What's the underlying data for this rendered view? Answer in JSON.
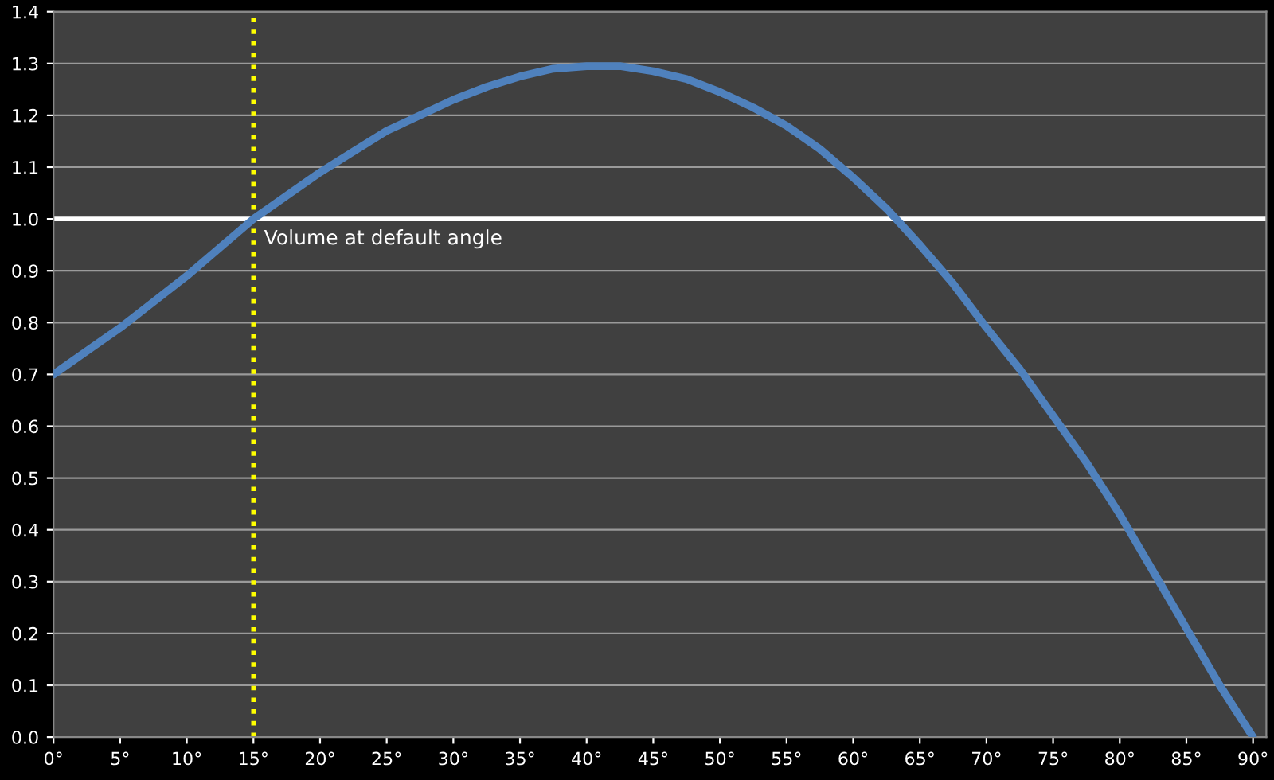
{
  "chart_data": {
    "type": "line",
    "x": [
      0,
      2.5,
      5,
      7.5,
      10,
      12.5,
      15,
      17.5,
      20,
      22.5,
      25,
      27.5,
      30,
      32.5,
      35,
      37.5,
      40,
      42.5,
      45,
      47.5,
      50,
      52.5,
      55,
      57.5,
      60,
      62.5,
      65,
      67.5,
      70,
      72.5,
      75,
      77.5,
      80,
      82.5,
      85,
      87.5,
      90
    ],
    "series": [
      {
        "color": "#4f81bd",
        "values": [
          0.7,
          0.745,
          0.79,
          0.84,
          0.89,
          0.945,
          1.0,
          1.045,
          1.09,
          1.13,
          1.17,
          1.2,
          1.23,
          1.255,
          1.275,
          1.29,
          1.295,
          1.295,
          1.285,
          1.27,
          1.245,
          1.215,
          1.18,
          1.135,
          1.08,
          1.02,
          0.95,
          0.875,
          0.79,
          0.71,
          0.62,
          0.53,
          0.43,
          0.32,
          0.21,
          0.1,
          0.0
        ]
      }
    ],
    "xlim": [
      0,
      91
    ],
    "xticks": [
      {
        "value": 0,
        "label": "0°"
      },
      {
        "value": 5,
        "label": "5°"
      },
      {
        "value": 10,
        "label": "10°"
      },
      {
        "value": 15,
        "label": "15°"
      },
      {
        "value": 20,
        "label": "20°"
      },
      {
        "value": 25,
        "label": "25°"
      },
      {
        "value": 30,
        "label": "30°"
      },
      {
        "value": 35,
        "label": "35°"
      },
      {
        "value": 40,
        "label": "40°"
      },
      {
        "value": 45,
        "label": "45°"
      },
      {
        "value": 50,
        "label": "50°"
      },
      {
        "value": 55,
        "label": "55°"
      },
      {
        "value": 60,
        "label": "60°"
      },
      {
        "value": 65,
        "label": "65°"
      },
      {
        "value": 70,
        "label": "70°"
      },
      {
        "value": 75,
        "label": "75°"
      },
      {
        "value": 80,
        "label": "80°"
      },
      {
        "value": 85,
        "label": "85°"
      },
      {
        "value": 90,
        "label": "90°"
      }
    ],
    "ylim": [
      0,
      1.4
    ],
    "yticks": [
      {
        "value": 0,
        "label": "0.0"
      },
      {
        "value": 0.1,
        "label": "0.1"
      },
      {
        "value": 0.2,
        "label": "0.2"
      },
      {
        "value": 0.3,
        "label": "0.3"
      },
      {
        "value": 0.4,
        "label": "0.4"
      },
      {
        "value": 0.5,
        "label": "0.5"
      },
      {
        "value": 0.6,
        "label": "0.6"
      },
      {
        "value": 0.7,
        "label": "0.7"
      },
      {
        "value": 0.8,
        "label": "0.8"
      },
      {
        "value": 0.9,
        "label": "0.9"
      },
      {
        "value": 1.0,
        "label": "1.0"
      },
      {
        "value": 1.1,
        "label": "1.1"
      },
      {
        "value": 1.2,
        "label": "1.2"
      },
      {
        "value": 1.3,
        "label": "1.3"
      },
      {
        "value": 1.4,
        "label": "1.4"
      }
    ],
    "grid": "y",
    "marker": "none",
    "line_style": "solid",
    "ref_lines": [
      {
        "axis": "y",
        "value": 1.0,
        "color": "#ffffff",
        "line_style": "solid"
      },
      {
        "axis": "x",
        "value": 15,
        "label": "Volume at default angle",
        "color": "#ffff00",
        "line_style": "dotted"
      }
    ]
  }
}
